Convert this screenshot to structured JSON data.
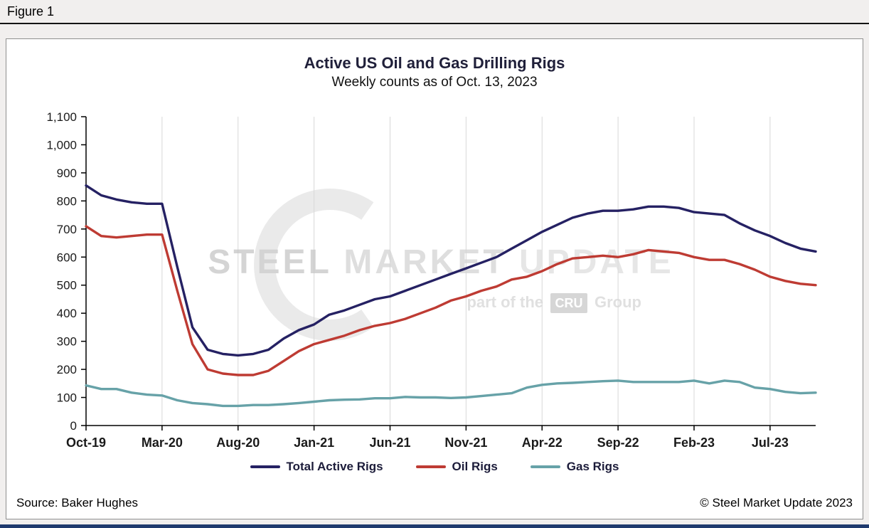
{
  "figure": {
    "label": "Figure 1"
  },
  "footer": {
    "source": "Source: Baker Hughes",
    "copyright": "© Steel Market Update 2023"
  },
  "watermark": {
    "word1": "STEEL",
    "word2": "MARKET",
    "word3": "UPDATE",
    "tagline_pre": "part of the",
    "cru": "CRU",
    "tagline_post": "Group"
  },
  "chart_data": {
    "type": "line",
    "title": "Active US Oil and Gas Drilling Rigs",
    "subtitle": "Weekly counts as of Oct. 13, 2023",
    "xlabel": "",
    "ylabel": "",
    "ylim": [
      0,
      1100
    ],
    "y_ticks": [
      0,
      100,
      200,
      300,
      400,
      500,
      600,
      700,
      800,
      900,
      1000,
      1100
    ],
    "grid": "vertical-only",
    "legend_position": "bottom",
    "categories": [
      "Oct-19",
      "Nov-19",
      "Dec-19",
      "Jan-20",
      "Feb-20",
      "Mar-20",
      "Apr-20",
      "May-20",
      "Jun-20",
      "Jul-20",
      "Aug-20",
      "Sep-20",
      "Oct-20",
      "Nov-20",
      "Dec-20",
      "Jan-21",
      "Feb-21",
      "Mar-21",
      "Apr-21",
      "May-21",
      "Jun-21",
      "Jul-21",
      "Aug-21",
      "Sep-21",
      "Oct-21",
      "Nov-21",
      "Dec-21",
      "Jan-22",
      "Feb-22",
      "Mar-22",
      "Apr-22",
      "May-22",
      "Jun-22",
      "Jul-22",
      "Aug-22",
      "Sep-22",
      "Oct-22",
      "Nov-22",
      "Dec-22",
      "Jan-23",
      "Feb-23",
      "Mar-23",
      "Apr-23",
      "May-23",
      "Jun-23",
      "Jul-23",
      "Aug-23",
      "Sep-23",
      "Oct-23"
    ],
    "x_tick_indices": [
      0,
      5,
      10,
      15,
      20,
      25,
      30,
      35,
      40,
      45
    ],
    "series": [
      {
        "name": "Total Active Rigs",
        "color": "#252163",
        "values": [
          855,
          820,
          805,
          795,
          790,
          790,
          565,
          350,
          270,
          255,
          250,
          255,
          270,
          310,
          340,
          360,
          395,
          410,
          430,
          450,
          460,
          480,
          500,
          520,
          540,
          560,
          580,
          600,
          630,
          660,
          690,
          715,
          740,
          755,
          765,
          765,
          770,
          780,
          780,
          775,
          760,
          755,
          750,
          720,
          695,
          675,
          650,
          630,
          620
        ]
      },
      {
        "name": "Oil Rigs",
        "color": "#be3b33",
        "values": [
          710,
          675,
          670,
          675,
          680,
          680,
          480,
          290,
          200,
          185,
          180,
          180,
          195,
          230,
          265,
          290,
          305,
          320,
          340,
          355,
          365,
          380,
          400,
          420,
          445,
          460,
          480,
          495,
          520,
          530,
          550,
          575,
          595,
          600,
          605,
          600,
          610,
          625,
          620,
          615,
          600,
          590,
          590,
          575,
          555,
          530,
          515,
          505,
          500
        ]
      },
      {
        "name": "Gas Rigs",
        "color": "#67a2a8",
        "values": [
          143,
          130,
          130,
          117,
          110,
          107,
          90,
          80,
          76,
          70,
          70,
          73,
          73,
          76,
          80,
          85,
          90,
          92,
          93,
          97,
          97,
          102,
          100,
          100,
          98,
          100,
          105,
          110,
          115,
          135,
          145,
          150,
          152,
          155,
          158,
          160,
          155,
          155,
          155,
          155,
          160,
          150,
          160,
          155,
          135,
          130,
          120,
          115,
          117
        ]
      }
    ]
  }
}
